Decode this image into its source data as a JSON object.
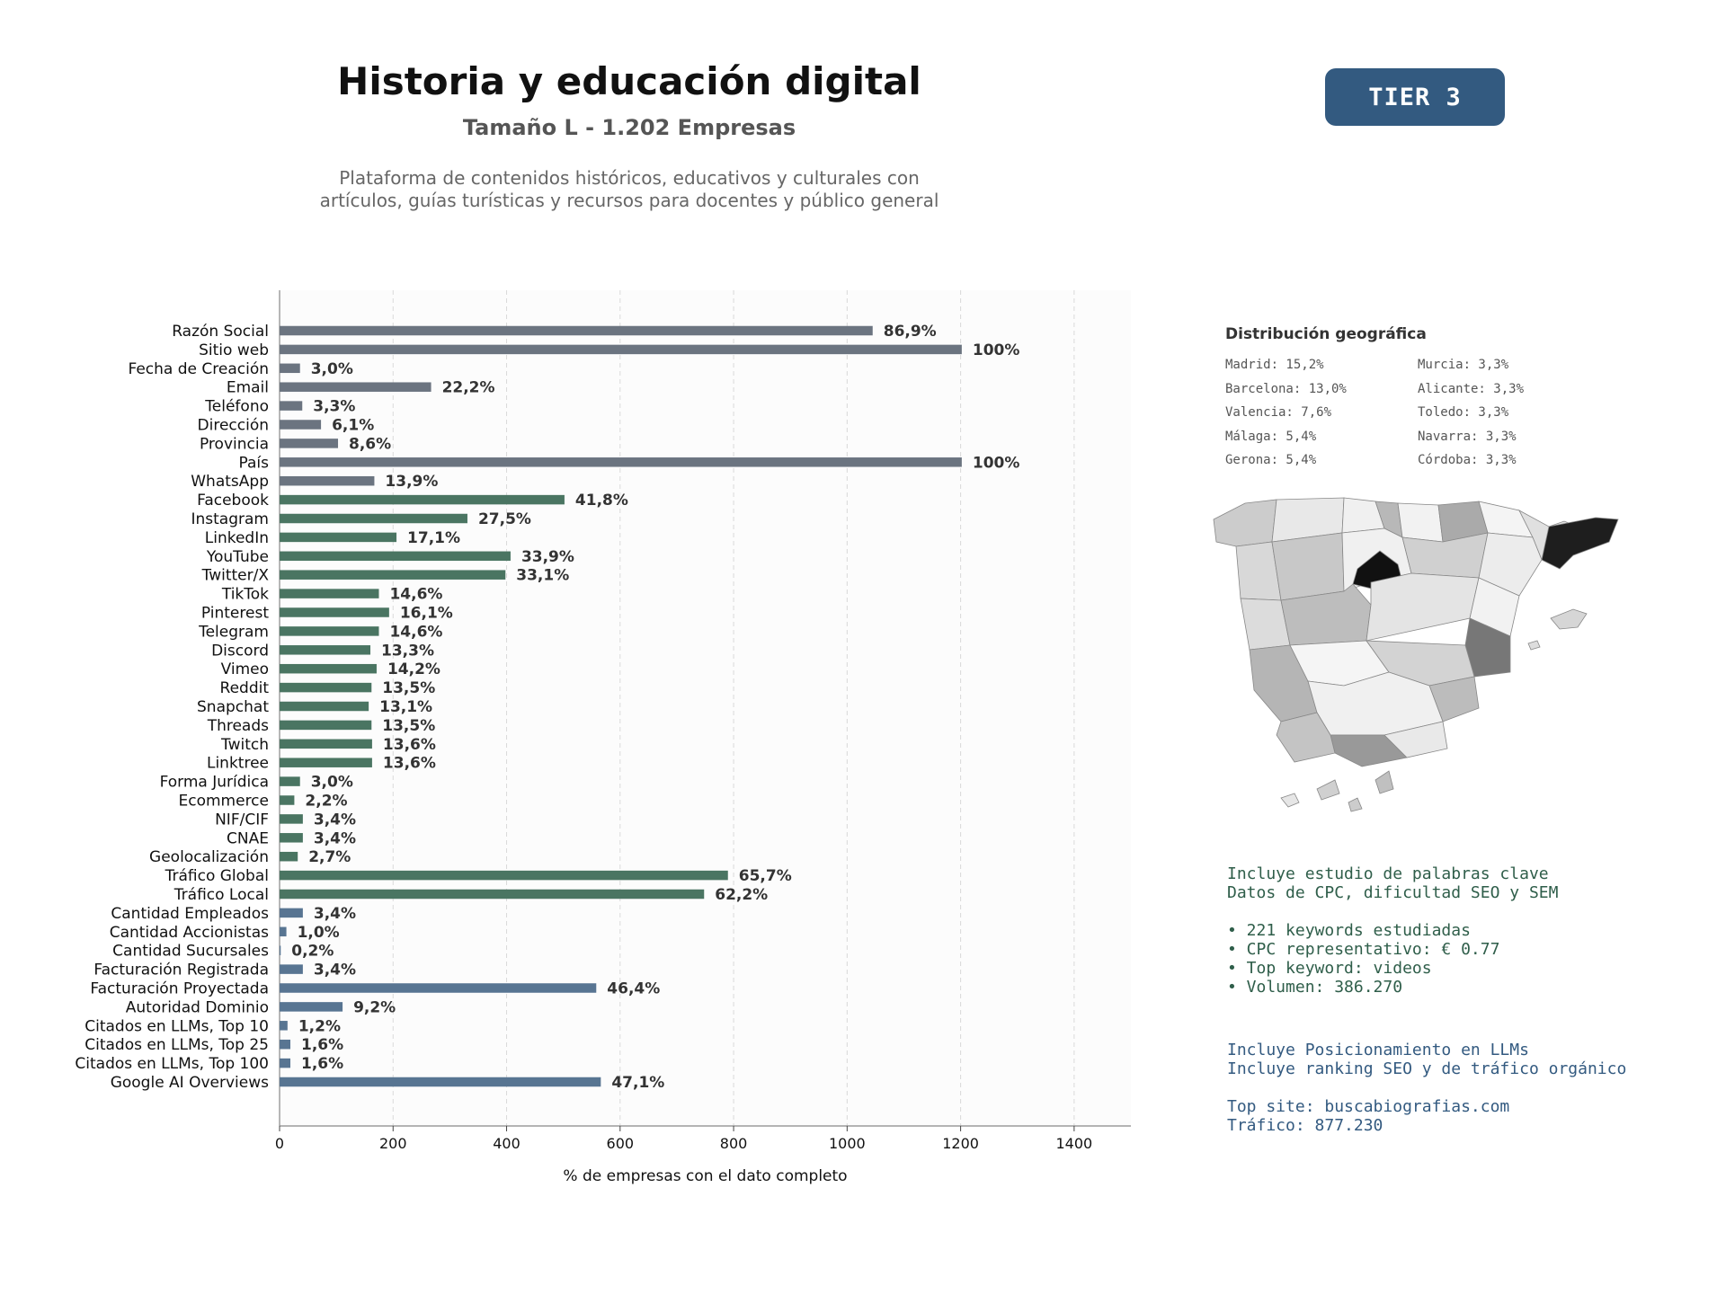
{
  "header": {
    "title": "Historia y educación digital",
    "subtitle": "Tamaño L - 1.202 Empresas",
    "description_lines": [
      "Plataforma de contenidos históricos, educativos y culturales con",
      "artículos, guías turísticas y recursos para docentes y público general"
    ],
    "tier": "TIER 3"
  },
  "chart_data": {
    "type": "bar",
    "orientation": "horizontal",
    "xlabel": "% de empresas con el dato completo",
    "xlim": [
      0,
      1500
    ],
    "xticks": [
      0,
      200,
      400,
      600,
      800,
      1000,
      1200,
      1400
    ],
    "grid": "vertical-dashed",
    "colors": {
      "basic": "#6b7480",
      "social": "#4a7562",
      "business": "#587592"
    },
    "categories": [
      "Razón Social",
      "Sitio web",
      "Fecha de Creación",
      "Email",
      "Teléfono",
      "Dirección",
      "Provincia",
      "País",
      "WhatsApp",
      "Facebook",
      "Instagram",
      "LinkedIn",
      "YouTube",
      "Twitter/X",
      "TikTok",
      "Pinterest",
      "Telegram",
      "Discord",
      "Vimeo",
      "Reddit",
      "Snapchat",
      "Threads",
      "Twitch",
      "Linktree",
      "Forma Jurídica",
      "Ecommerce",
      "NIF/CIF",
      "CNAE",
      "Geolocalización",
      "Tráfico Global",
      "Tráfico Local",
      "Cantidad Empleados",
      "Cantidad Accionistas",
      "Cantidad Sucursales",
      "Facturación Registrada",
      "Facturación Proyectada",
      "Autoridad Dominio",
      "Citados en LLMs, Top 10",
      "Citados en LLMs, Top 25",
      "Citados en LLMs, Top 100",
      "Google AI Overviews"
    ],
    "values": [
      1045,
      1202,
      36,
      267,
      40,
      73,
      103,
      1202,
      167,
      502,
      331,
      206,
      407,
      398,
      175,
      193,
      175,
      160,
      171,
      162,
      157,
      162,
      163,
      163,
      36,
      26,
      41,
      41,
      32,
      790,
      748,
      41,
      12,
      2,
      41,
      558,
      111,
      14,
      19,
      19,
      566
    ],
    "labels": [
      "86,9%",
      "100%",
      "3,0%",
      "22,2%",
      "3,3%",
      "6,1%",
      "8,6%",
      "100%",
      "13,9%",
      "41,8%",
      "27,5%",
      "17,1%",
      "33,9%",
      "33,1%",
      "14,6%",
      "16,1%",
      "14,6%",
      "13,3%",
      "14,2%",
      "13,5%",
      "13,1%",
      "13,5%",
      "13,6%",
      "13,6%",
      "3,0%",
      "2,2%",
      "3,4%",
      "3,4%",
      "2,7%",
      "65,7%",
      "62,2%",
      "3,4%",
      "1,0%",
      "0,2%",
      "3,4%",
      "46,4%",
      "9,2%",
      "1,2%",
      "1,6%",
      "1,6%",
      "47,1%"
    ],
    "groups": [
      "basic",
      "basic",
      "basic",
      "basic",
      "basic",
      "basic",
      "basic",
      "basic",
      "basic",
      "social",
      "social",
      "social",
      "social",
      "social",
      "social",
      "social",
      "social",
      "social",
      "social",
      "social",
      "social",
      "social",
      "social",
      "social",
      "social",
      "social",
      "social",
      "social",
      "social",
      "social",
      "social",
      "business",
      "business",
      "business",
      "business",
      "business",
      "business",
      "business",
      "business",
      "business",
      "business"
    ]
  },
  "geo": {
    "title": "Distribución geográfica",
    "left": [
      "Madrid: 15,2%",
      "Barcelona: 13,0%",
      "Valencia: 7,6%",
      "Málaga: 5,4%",
      "Gerona: 5,4%"
    ],
    "right": [
      "Murcia: 3,3%",
      "Alicante: 3,3%",
      "Toledo: 3,3%",
      "Navarra: 3,3%",
      "Córdoba: 3,3%"
    ]
  },
  "keywords": {
    "lines": [
      "Incluye estudio de palabras clave",
      "Datos de CPC, dificultad SEO y SEM",
      "",
      "• 221 keywords estudiadas",
      "• CPC representativo: € 0.77",
      "• Top keyword: videos",
      "• Volumen: 386.270"
    ]
  },
  "llm": {
    "lines": [
      "Incluye Posicionamiento en LLMs",
      "Incluye ranking SEO y de tráfico orgánico",
      "",
      "Top site: buscabiografias.com",
      "Tráfico: 877.230"
    ]
  }
}
